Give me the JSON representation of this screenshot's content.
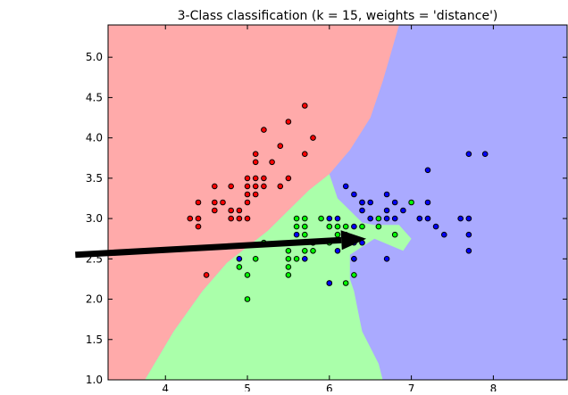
{
  "chart_data": {
    "type": "scatter",
    "title": "3-Class classification (k = 15, weights = 'distance')",
    "xlabel": "",
    "ylabel": "",
    "xlim": [
      3.3,
      8.9
    ],
    "ylim": [
      1.0,
      5.4
    ],
    "xticks": [
      4,
      5,
      6,
      7,
      8
    ],
    "yticks": [
      1.0,
      1.5,
      2.0,
      2.5,
      3.0,
      3.5,
      4.0,
      4.5,
      5.0
    ],
    "ytick_labels": [
      "1.0",
      "1.5",
      "2.0",
      "2.5",
      "3.0",
      "3.5",
      "4.0",
      "4.5",
      "5.0"
    ],
    "xtick_labels": [
      "4",
      "5",
      "6",
      "7",
      "8"
    ],
    "grid": false,
    "legend": "none",
    "colors": {
      "region_red": "#ffaaaa",
      "region_green": "#aaffaa",
      "region_blue": "#aaaaff",
      "point_red": "#ff0000",
      "point_green": "#00ff00",
      "point_blue": "#0000ff"
    },
    "regions": [
      {
        "class": "red",
        "vertices": [
          [
            3.3,
            1.0
          ],
          [
            3.75,
            1.0
          ],
          [
            4.1,
            1.6
          ],
          [
            4.45,
            2.1
          ],
          [
            4.75,
            2.45
          ],
          [
            5.0,
            2.65
          ],
          [
            5.25,
            2.85
          ],
          [
            5.55,
            3.15
          ],
          [
            5.75,
            3.35
          ],
          [
            6.0,
            3.55
          ],
          [
            6.25,
            3.85
          ],
          [
            6.5,
            4.25
          ],
          [
            6.65,
            4.7
          ],
          [
            6.75,
            5.05
          ],
          [
            6.85,
            5.4
          ],
          [
            3.3,
            5.4
          ]
        ]
      },
      {
        "class": "green",
        "vertices": [
          [
            3.75,
            1.0
          ],
          [
            6.65,
            1.0
          ],
          [
            6.6,
            1.2
          ],
          [
            6.4,
            1.6
          ],
          [
            6.35,
            1.85
          ],
          [
            6.3,
            2.1
          ],
          [
            6.25,
            2.25
          ],
          [
            6.25,
            2.55
          ],
          [
            6.55,
            2.75
          ],
          [
            6.9,
            2.6
          ],
          [
            7.0,
            2.75
          ],
          [
            6.85,
            2.92
          ],
          [
            6.55,
            2.92
          ],
          [
            6.4,
            2.95
          ],
          [
            6.25,
            3.1
          ],
          [
            6.1,
            3.25
          ],
          [
            6.0,
            3.55
          ],
          [
            5.75,
            3.35
          ],
          [
            5.55,
            3.15
          ],
          [
            5.25,
            2.85
          ],
          [
            5.0,
            2.65
          ],
          [
            4.75,
            2.45
          ],
          [
            4.45,
            2.1
          ],
          [
            4.1,
            1.6
          ]
        ]
      }
    ],
    "series": [
      {
        "class": "red",
        "points": [
          [
            4.3,
            3.0
          ],
          [
            4.4,
            2.9
          ],
          [
            4.4,
            3.0
          ],
          [
            4.4,
            3.2
          ],
          [
            4.5,
            2.3
          ],
          [
            4.6,
            3.1
          ],
          [
            4.6,
            3.2
          ],
          [
            4.6,
            3.4
          ],
          [
            4.7,
            3.2
          ],
          [
            4.8,
            3.0
          ],
          [
            4.8,
            3.1
          ],
          [
            4.8,
            3.4
          ],
          [
            4.9,
            3.0
          ],
          [
            4.9,
            3.1
          ],
          [
            5.0,
            3.0
          ],
          [
            5.0,
            3.2
          ],
          [
            5.0,
            3.3
          ],
          [
            5.0,
            3.4
          ],
          [
            5.0,
            3.5
          ],
          [
            5.1,
            3.3
          ],
          [
            5.1,
            3.4
          ],
          [
            5.1,
            3.5
          ],
          [
            5.1,
            3.7
          ],
          [
            5.1,
            3.8
          ],
          [
            5.2,
            3.4
          ],
          [
            5.2,
            3.5
          ],
          [
            5.2,
            4.1
          ],
          [
            5.3,
            3.7
          ],
          [
            5.4,
            3.4
          ],
          [
            5.4,
            3.9
          ],
          [
            5.5,
            3.5
          ],
          [
            5.5,
            4.2
          ],
          [
            5.7,
            3.8
          ],
          [
            5.7,
            4.4
          ],
          [
            5.8,
            4.0
          ]
        ]
      },
      {
        "class": "green",
        "points": [
          [
            4.9,
            2.4
          ],
          [
            5.0,
            2.0
          ],
          [
            5.0,
            2.3
          ],
          [
            5.1,
            2.5
          ],
          [
            5.2,
            2.7
          ],
          [
            5.5,
            2.3
          ],
          [
            5.5,
            2.4
          ],
          [
            5.5,
            2.5
          ],
          [
            5.5,
            2.6
          ],
          [
            5.6,
            2.5
          ],
          [
            5.6,
            2.7
          ],
          [
            5.6,
            2.9
          ],
          [
            5.6,
            3.0
          ],
          [
            5.7,
            2.6
          ],
          [
            5.7,
            2.8
          ],
          [
            5.7,
            2.9
          ],
          [
            5.7,
            3.0
          ],
          [
            5.8,
            2.6
          ],
          [
            5.8,
            2.7
          ],
          [
            5.9,
            3.0
          ],
          [
            6.0,
            2.2
          ],
          [
            6.0,
            2.7
          ],
          [
            6.0,
            2.9
          ],
          [
            6.1,
            2.8
          ],
          [
            6.1,
            2.9
          ],
          [
            6.2,
            2.2
          ],
          [
            6.2,
            2.9
          ],
          [
            6.3,
            2.3
          ],
          [
            6.3,
            2.5
          ],
          [
            6.4,
            2.9
          ],
          [
            6.4,
            3.2
          ],
          [
            6.6,
            2.9
          ],
          [
            6.6,
            3.0
          ],
          [
            6.8,
            2.8
          ],
          [
            7.0,
            3.2
          ]
        ]
      },
      {
        "class": "blue",
        "points": [
          [
            4.9,
            2.5
          ],
          [
            5.6,
            2.8
          ],
          [
            5.7,
            2.5
          ],
          [
            5.8,
            2.7
          ],
          [
            6.0,
            2.2
          ],
          [
            6.0,
            3.0
          ],
          [
            6.1,
            2.6
          ],
          [
            6.1,
            3.0
          ],
          [
            6.2,
            2.8
          ],
          [
            6.2,
            3.4
          ],
          [
            6.3,
            2.5
          ],
          [
            6.3,
            2.7
          ],
          [
            6.3,
            2.9
          ],
          [
            6.3,
            3.3
          ],
          [
            6.4,
            2.7
          ],
          [
            6.4,
            3.1
          ],
          [
            6.4,
            3.2
          ],
          [
            6.5,
            3.0
          ],
          [
            6.5,
            3.2
          ],
          [
            6.7,
            3.0
          ],
          [
            6.7,
            3.1
          ],
          [
            6.7,
            3.3
          ],
          [
            6.8,
            3.0
          ],
          [
            6.8,
            3.2
          ],
          [
            6.9,
            3.1
          ],
          [
            7.1,
            3.0
          ],
          [
            7.2,
            3.0
          ],
          [
            7.2,
            3.2
          ],
          [
            7.2,
            3.6
          ],
          [
            7.3,
            2.9
          ],
          [
            7.4,
            2.8
          ],
          [
            7.6,
            3.0
          ],
          [
            7.7,
            2.6
          ],
          [
            7.7,
            2.8
          ],
          [
            7.7,
            3.0
          ],
          [
            7.7,
            3.8
          ],
          [
            7.9,
            3.8
          ],
          [
            6.7,
            2.5
          ]
        ]
      }
    ],
    "annotations": [
      {
        "type": "arrow",
        "from": [
          2.9,
          2.55
        ],
        "to": [
          6.45,
          2.75
        ],
        "color": "#000000"
      }
    ]
  }
}
